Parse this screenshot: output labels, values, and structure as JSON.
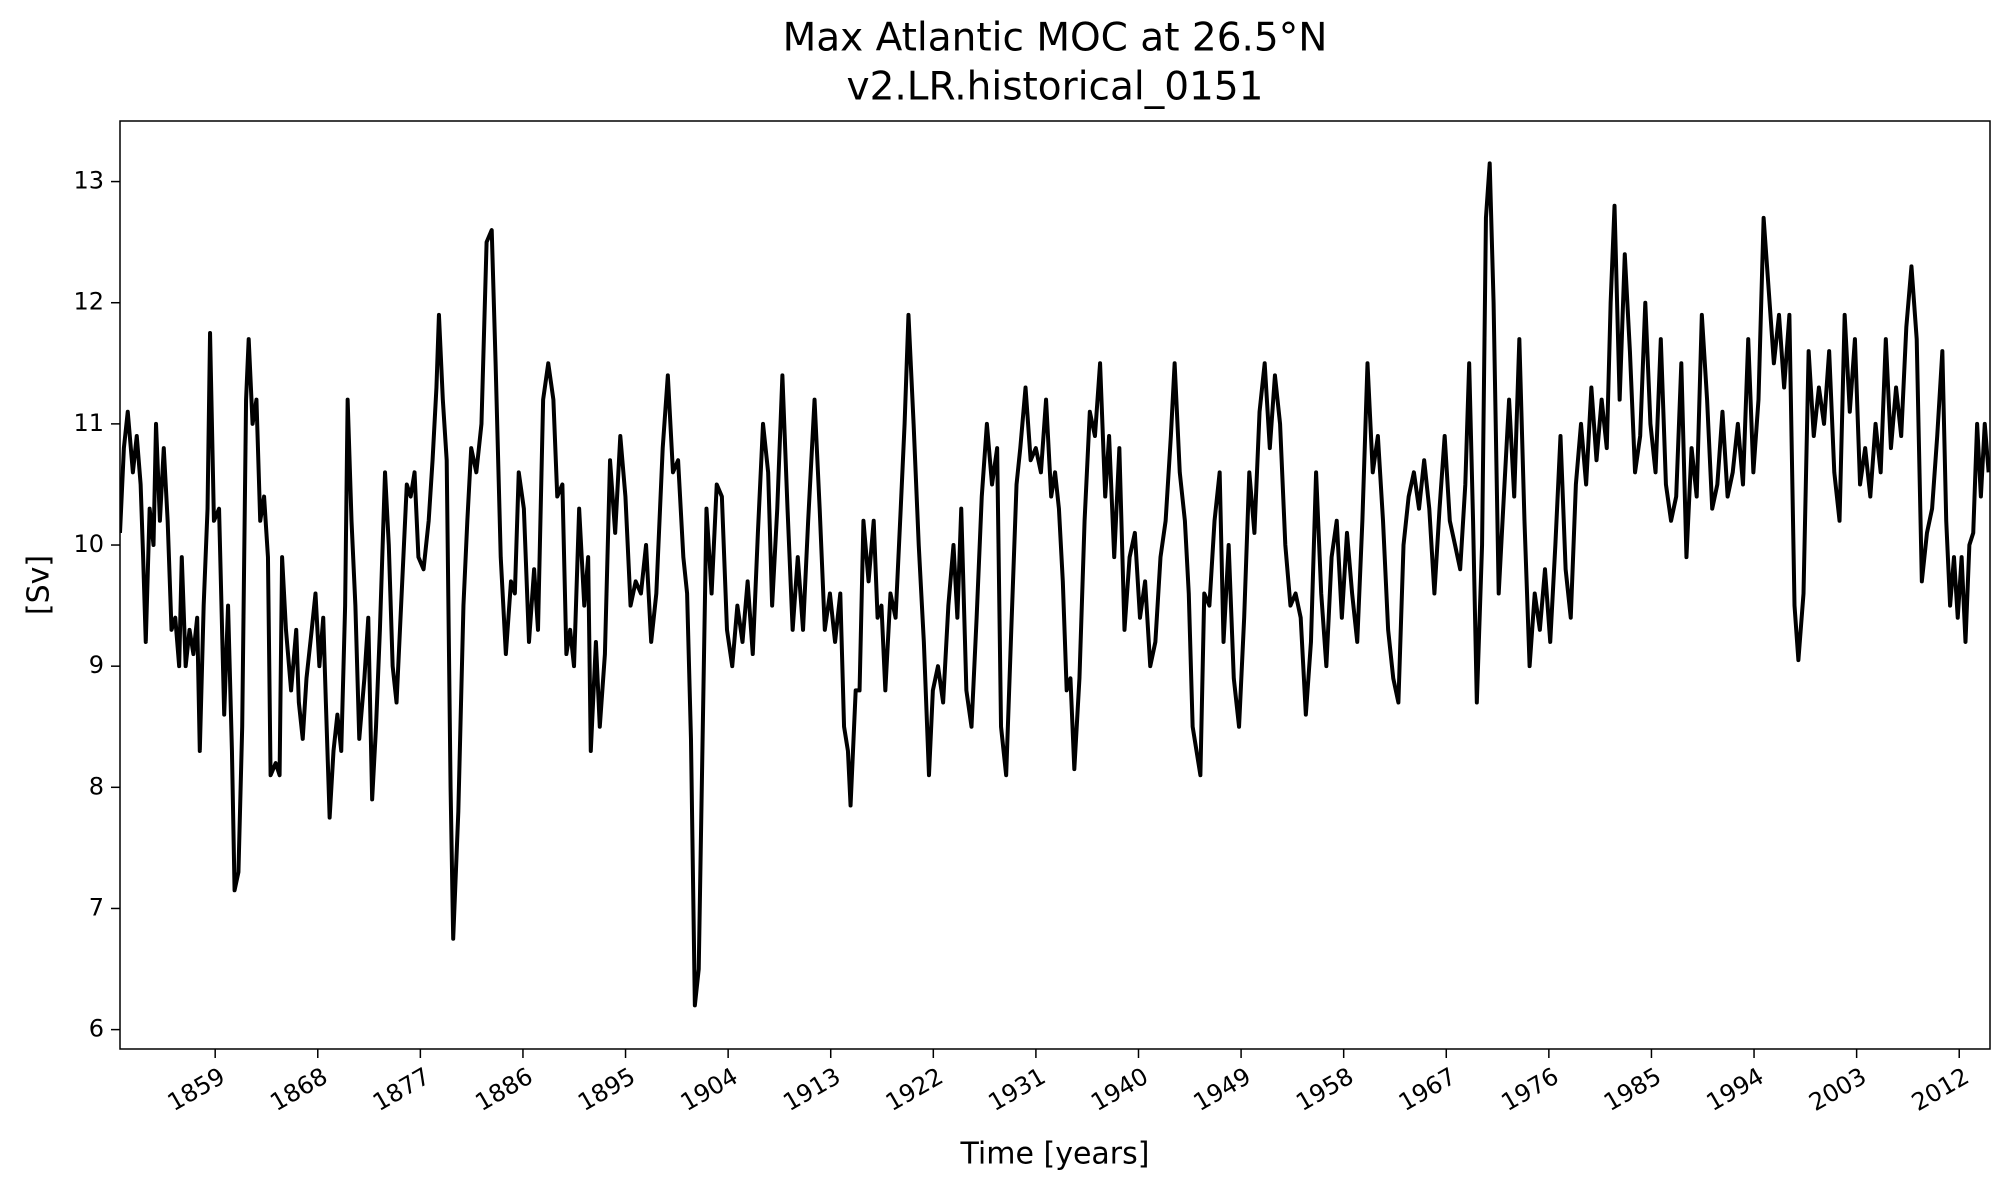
{
  "chart_data": {
    "type": "line",
    "title": "Max Atlantic MOC at 26.5°N",
    "subtitle": "v2.LR.historical_0151",
    "xlabel": "Time [years]",
    "ylabel": "[Sv]",
    "xlim": [
      1850.65,
      2014.7
    ],
    "ylim": [
      5.84,
      13.5
    ],
    "xticks": [
      1859,
      1868,
      1877,
      1886,
      1895,
      1904,
      1913,
      1922,
      1931,
      1940,
      1949,
      1958,
      1967,
      1976,
      1985,
      1994,
      2003,
      2012
    ],
    "yticks": [
      6,
      7,
      8,
      9,
      10,
      11,
      12,
      13
    ],
    "grid": false,
    "series": [
      {
        "name": "Max Atlantic MOC",
        "color": "#000000",
        "x": [
          1850.65,
          1850.99,
          1851.33,
          1851.78,
          1852.12,
          1852.46,
          1852.68,
          1852.91,
          1853.25,
          1853.59,
          1853.81,
          1854.15,
          1854.49,
          1854.83,
          1855.17,
          1855.5,
          1855.84,
          1856.07,
          1856.41,
          1856.75,
          1857.09,
          1857.42,
          1857.65,
          1857.99,
          1858.33,
          1858.55,
          1858.89,
          1859.34,
          1859.79,
          1860.13,
          1860.47,
          1860.7,
          1861.04,
          1861.37,
          1861.71,
          1861.94,
          1862.28,
          1862.62,
          1862.95,
          1863.29,
          1863.63,
          1863.86,
          1864.31,
          1864.65,
          1864.87,
          1865.21,
          1865.66,
          1866.11,
          1866.34,
          1866.68,
          1867.01,
          1867.47,
          1867.8,
          1868.14,
          1868.48,
          1868.71,
          1869.04,
          1869.38,
          1869.72,
          1870.06,
          1870.4,
          1870.62,
          1870.96,
          1871.3,
          1871.64,
          1872.09,
          1872.43,
          1872.77,
          1873.11,
          1873.45,
          1873.9,
          1874.23,
          1874.57,
          1874.91,
          1875.36,
          1875.81,
          1876.15,
          1876.49,
          1876.83,
          1877.28,
          1877.73,
          1878.07,
          1878.41,
          1878.63,
          1878.97,
          1879.31,
          1879.65,
          1879.88,
          1880.33,
          1880.78,
          1881.12,
          1881.46,
          1881.91,
          1882.36,
          1882.81,
          1883.26,
          1883.6,
          1884.05,
          1884.5,
          1884.95,
          1885.29,
          1885.63,
          1886.08,
          1886.53,
          1886.98,
          1887.32,
          1887.77,
          1888.22,
          1888.67,
          1889.01,
          1889.46,
          1889.81,
          1890.14,
          1890.48,
          1890.93,
          1891.38,
          1891.72,
          1891.95,
          1892.4,
          1892.74,
          1893.19,
          1893.64,
          1894.09,
          1894.54,
          1894.99,
          1895.44,
          1895.89,
          1896.35,
          1896.8,
          1897.25,
          1897.7,
          1898.26,
          1898.71,
          1899.16,
          1899.61,
          1900.07,
          1900.4,
          1900.74,
          1901.08,
          1901.42,
          1901.76,
          1902.1,
          1902.55,
          1903.0,
          1903.45,
          1903.9,
          1904.36,
          1904.81,
          1905.26,
          1905.71,
          1906.16,
          1906.61,
          1907.06,
          1907.51,
          1907.86,
          1908.31,
          1908.76,
          1909.21,
          1909.66,
          1910.11,
          1910.57,
          1911.02,
          1911.58,
          1912.03,
          1912.48,
          1912.93,
          1913.38,
          1913.84,
          1914.17,
          1914.51,
          1914.74,
          1915.19,
          1915.53,
          1915.87,
          1916.32,
          1916.77,
          1917.11,
          1917.45,
          1917.79,
          1918.24,
          1918.69,
          1919.14,
          1919.48,
          1919.82,
          1920.27,
          1920.72,
          1921.17,
          1921.62,
          1921.96,
          1922.41,
          1922.86,
          1923.32,
          1923.77,
          1924.11,
          1924.45,
          1924.9,
          1925.35,
          1925.8,
          1926.25,
          1926.7,
          1927.15,
          1927.6,
          1927.94,
          1928.39,
          1928.84,
          1929.3,
          1929.63,
          1930.09,
          1930.54,
          1930.99,
          1931.44,
          1931.89,
          1932.34,
          1932.68,
          1933.02,
          1933.36,
          1933.7,
          1934.03,
          1934.37,
          1934.82,
          1935.27,
          1935.73,
          1936.18,
          1936.63,
          1937.08,
          1937.42,
          1937.87,
          1938.32,
          1938.77,
          1939.22,
          1939.68,
          1940.13,
          1940.58,
          1941.03,
          1941.48,
          1941.93,
          1942.38,
          1942.84,
          1943.17,
          1943.62,
          1944.07,
          1944.41,
          1944.75,
          1945.09,
          1945.43,
          1945.77,
          1946.22,
          1946.67,
          1947.12,
          1947.46,
          1947.91,
          1948.36,
          1948.82,
          1949.27,
          1949.72,
          1950.17,
          1950.62,
          1951.07,
          1951.52,
          1951.97,
          1952.42,
          1952.88,
          1953.33,
          1953.78,
          1954.23,
          1954.68,
          1955.13,
          1955.58,
          1956.03,
          1956.48,
          1956.94,
          1957.39,
          1957.84,
          1958.29,
          1958.74,
          1959.19,
          1959.64,
          1960.09,
          1960.55,
          1961.0,
          1961.45,
          1961.9,
          1962.35,
          1962.8,
          1963.25,
          1963.7,
          1964.16,
          1964.61,
          1965.06,
          1965.51,
          1965.96,
          1966.41,
          1966.86,
          1967.31,
          1967.77,
          1968.22,
          1968.67,
          1969.01,
          1969.35,
          1969.68,
          1970.14,
          1970.48,
          1970.81,
          1971.15,
          1971.6,
          1972.05,
          1972.51,
          1972.96,
          1973.41,
          1973.86,
          1974.31,
          1974.76,
          1975.21,
          1975.66,
          1976.12,
          1976.57,
          1977.02,
          1977.47,
          1977.92,
          1978.37,
          1978.82,
          1979.27,
          1979.73,
          1980.18,
          1980.63,
          1981.08,
          1981.42,
          1981.76,
          1982.21,
          1982.66,
          1983.11,
          1983.56,
          1984.01,
          1984.46,
          1984.91,
          1985.36,
          1985.82,
          1986.27,
          1986.72,
          1987.17,
          1987.62,
          1988.07,
          1988.52,
          1988.97,
          1989.42,
          1989.88,
          1990.33,
          1990.78,
          1991.23,
          1991.68,
          1992.13,
          1992.58,
          1993.03,
          1993.49,
          1993.94,
          1994.39,
          1994.84,
          1995.29,
          1995.74,
          1996.19,
          1996.64,
          1997.1,
          1997.55,
          1997.89,
          1998.34,
          1998.79,
          1999.24,
          1999.69,
          2000.14,
          2000.59,
          2001.04,
          2001.5,
          2001.95,
          2002.4,
          2002.85,
          2003.3,
          2003.75,
          2004.2,
          2004.66,
          2005.11,
          2005.56,
          2006.01,
          2006.46,
          2006.91,
          2007.36,
          2007.81,
          2008.27,
          2008.72,
          2009.17,
          2009.62,
          2010.07,
          2010.52,
          2010.86,
          2011.2,
          2011.54,
          2011.87,
          2012.21,
          2012.55,
          2012.89,
          2013.23,
          2013.57,
          2013.9,
          2014.24,
          2014.58
        ],
        "values": [
          10.1,
          10.8,
          11.1,
          10.6,
          10.9,
          10.5,
          9.9,
          9.2,
          10.3,
          10.0,
          11.0,
          10.2,
          10.8,
          10.2,
          9.3,
          9.4,
          9.0,
          9.9,
          9.0,
          9.3,
          9.1,
          9.4,
          8.3,
          9.5,
          10.3,
          11.75,
          10.2,
          10.3,
          8.6,
          9.5,
          8.3,
          7.15,
          7.3,
          8.5,
          11.2,
          11.7,
          11.0,
          11.2,
          10.2,
          10.4,
          9.9,
          8.1,
          8.2,
          8.1,
          9.9,
          9.3,
          8.8,
          9.3,
          8.7,
          8.4,
          8.9,
          9.3,
          9.6,
          9.0,
          9.4,
          8.7,
          7.75,
          8.3,
          8.6,
          8.3,
          9.5,
          11.2,
          10.2,
          9.5,
          8.4,
          8.9,
          9.4,
          7.9,
          8.5,
          9.3,
          10.6,
          10.0,
          9.0,
          8.7,
          9.6,
          10.5,
          10.4,
          10.6,
          9.9,
          9.8,
          10.2,
          10.7,
          11.3,
          11.9,
          11.2,
          10.7,
          8.0,
          6.75,
          7.8,
          9.5,
          10.2,
          10.8,
          10.6,
          11.0,
          12.5,
          12.6,
          11.5,
          9.9,
          9.1,
          9.7,
          9.6,
          10.6,
          10.3,
          9.2,
          9.8,
          9.3,
          11.2,
          11.5,
          11.2,
          10.4,
          10.5,
          9.1,
          9.3,
          9.0,
          10.3,
          9.5,
          9.9,
          8.3,
          9.2,
          8.5,
          9.1,
          10.7,
          10.1,
          10.9,
          10.4,
          9.5,
          9.7,
          9.6,
          10.0,
          9.2,
          9.6,
          10.8,
          11.4,
          10.6,
          10.7,
          9.9,
          9.6,
          8.4,
          6.2,
          6.5,
          8.4,
          10.3,
          9.6,
          10.5,
          10.4,
          9.3,
          9.0,
          9.5,
          9.2,
          9.7,
          9.1,
          10.1,
          11.0,
          10.6,
          9.5,
          10.3,
          11.4,
          10.3,
          9.3,
          9.9,
          9.3,
          10.2,
          11.2,
          10.3,
          9.3,
          9.6,
          9.2,
          9.6,
          8.5,
          8.3,
          7.85,
          8.8,
          8.8,
          10.2,
          9.7,
          10.2,
          9.4,
          9.5,
          8.8,
          9.6,
          9.4,
          10.3,
          11.0,
          11.9,
          11.0,
          10.0,
          9.2,
          8.1,
          8.8,
          9.0,
          8.7,
          9.5,
          10.0,
          9.4,
          10.3,
          8.8,
          8.5,
          9.4,
          10.4,
          11.0,
          10.5,
          10.8,
          8.5,
          8.1,
          9.3,
          10.5,
          10.8,
          11.3,
          10.7,
          10.8,
          10.6,
          11.2,
          10.4,
          10.6,
          10.3,
          9.7,
          8.8,
          8.9,
          8.15,
          8.9,
          10.2,
          11.1,
          10.9,
          11.5,
          10.4,
          10.9,
          9.9,
          10.8,
          9.3,
          9.9,
          10.1,
          9.4,
          9.7,
          9.0,
          9.2,
          9.9,
          10.2,
          10.9,
          11.5,
          10.6,
          10.2,
          9.6,
          8.5,
          8.3,
          8.1,
          9.6,
          9.5,
          10.2,
          10.6,
          9.2,
          10.0,
          8.9,
          8.5,
          9.4,
          10.6,
          10.1,
          11.1,
          11.5,
          10.8,
          11.4,
          11.0,
          10.0,
          9.5,
          9.6,
          9.4,
          8.6,
          9.2,
          10.6,
          9.6,
          9.0,
          9.9,
          10.2,
          9.4,
          10.1,
          9.6,
          9.2,
          10.2,
          11.5,
          10.6,
          10.9,
          10.2,
          9.3,
          8.9,
          8.7,
          10.0,
          10.4,
          10.6,
          10.3,
          10.7,
          10.3,
          9.6,
          10.3,
          10.9,
          10.2,
          10.0,
          9.8,
          10.5,
          11.5,
          10.2,
          8.7,
          10.0,
          12.7,
          13.15,
          12.0,
          9.6,
          10.4,
          11.2,
          10.4,
          11.7,
          10.2,
          9.0,
          9.6,
          9.3,
          9.8,
          9.2,
          10.0,
          10.9,
          9.8,
          9.4,
          10.5,
          11.0,
          10.5,
          11.3,
          10.7,
          11.2,
          10.8,
          12.0,
          12.8,
          11.2,
          12.4,
          11.6,
          10.6,
          10.9,
          12.0,
          11.0,
          10.6,
          11.7,
          10.5,
          10.2,
          10.4,
          11.5,
          9.9,
          10.8,
          10.4,
          11.9,
          11.2,
          10.3,
          10.5,
          11.1,
          10.4,
          10.6,
          11.0,
          10.5,
          11.7,
          10.6,
          11.2,
          12.7,
          12.1,
          11.5,
          11.9,
          11.3,
          11.9,
          9.5,
          9.05,
          9.6,
          11.6,
          10.9,
          11.3,
          11.0,
          11.6,
          10.6,
          10.2,
          11.9,
          11.1,
          11.7,
          10.5,
          10.8,
          10.4,
          11.0,
          10.6,
          11.7,
          10.8,
          11.3,
          10.9,
          11.8,
          12.3,
          11.7,
          9.7,
          10.1,
          10.3,
          10.9,
          11.6,
          10.2,
          9.5,
          9.9,
          9.4,
          9.9,
          9.2,
          10.0,
          10.1,
          11.0,
          10.4,
          11.0,
          10.6
        ]
      }
    ]
  }
}
